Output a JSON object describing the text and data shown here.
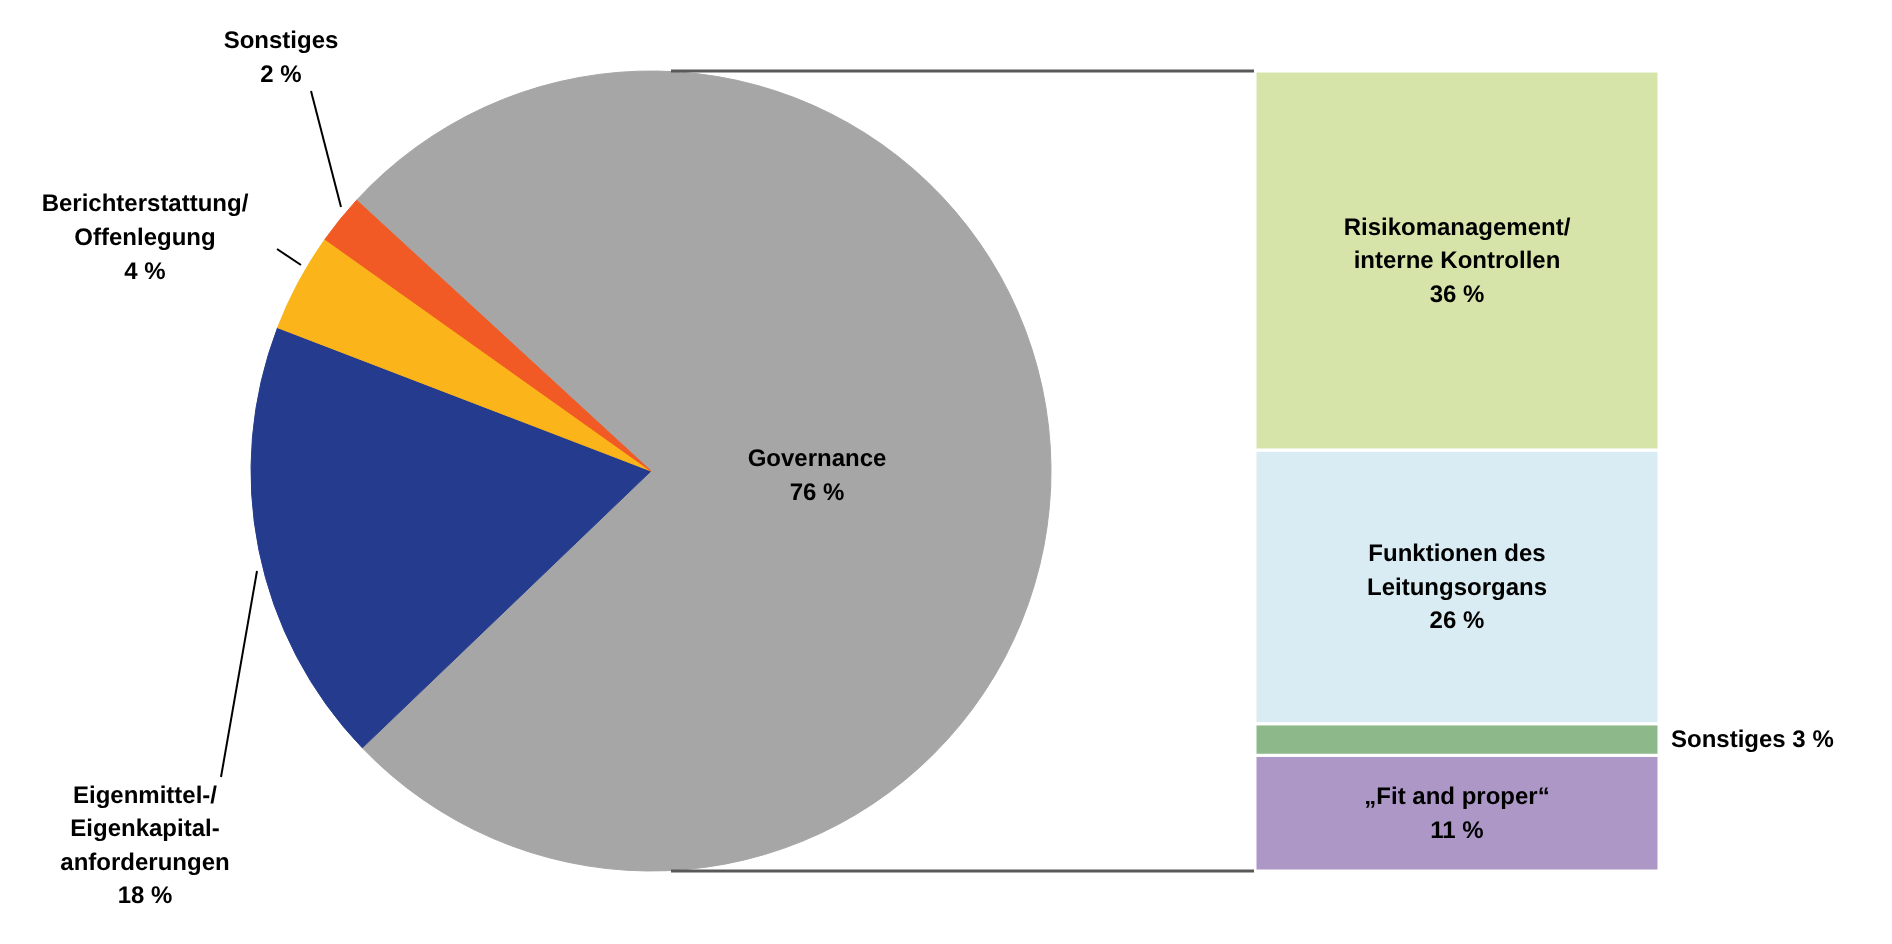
{
  "chart_data": [
    {
      "type": "pie",
      "categories": [
        "Governance",
        "Eigenmittel-/\nEigenkapital-\nanforderungen",
        "Berichterstattung/\nOffenlegung",
        "Sonstiges"
      ],
      "values": [
        76,
        18,
        4,
        2
      ],
      "colors": [
        "#a6a6a6",
        "#253c8e",
        "#fbb41a",
        "#f15a24"
      ],
      "value_labels": [
        "76 %",
        "18 %",
        "4 %",
        "2 %"
      ]
    },
    {
      "type": "bar",
      "stacked": true,
      "categories": [
        null
      ],
      "series": [
        {
          "name": "„Fit and proper“",
          "color": "#ad97c7",
          "values": [
            11
          ],
          "value_labels": [
            "11 %"
          ]
        },
        {
          "name": "Sonstiges",
          "color": "#8db88a",
          "values": [
            3
          ],
          "value_labels": [
            "3 %"
          ]
        },
        {
          "name": "Funktionen des\nLeitungsorgans",
          "color": "#d9ecf3",
          "values": [
            26
          ],
          "value_labels": [
            "26 %"
          ]
        },
        {
          "name": "Risikomanagement/\ninterne Kontrollen",
          "color": "#d6e4aa",
          "values": [
            36
          ],
          "value_labels": [
            "36 %"
          ]
        }
      ]
    }
  ]
}
